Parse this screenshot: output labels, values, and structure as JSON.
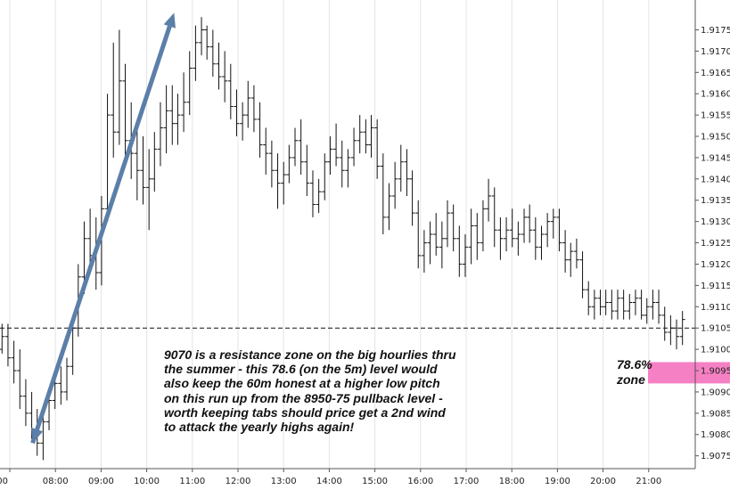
{
  "chart_data": {
    "type": "ohlc",
    "x_axis": {
      "tick_labels": [
        "00",
        "08:00",
        "09:00",
        "10:00",
        "11:00",
        "12:00",
        "13:00",
        "14:00",
        "15:00",
        "16:00",
        "17:00",
        "18:00",
        "19:00",
        "20:00",
        "21:00"
      ]
    },
    "y_axis": {
      "range": [
        1.9072,
        1.9182
      ],
      "position": "right",
      "tick_labels": [
        "1.9075",
        "1.9080",
        "1.9085",
        "1.9090",
        "1.9095",
        "1.9100",
        "1.9105",
        "1.9110",
        "1.9115",
        "1.9120",
        "1.9125",
        "1.9130",
        "1.9135",
        "1.9140",
        "1.9145",
        "1.9150",
        "1.9155",
        "1.9160",
        "1.9165",
        "1.9170",
        "1.9175"
      ]
    },
    "grid": "vertical",
    "x_range": [
      0,
      15.3
    ],
    "tick_positions": [
      0,
      1,
      2,
      3,
      4,
      5,
      6,
      7,
      8,
      9,
      10,
      11,
      12,
      13,
      14
    ],
    "resistance_level": 1.9105,
    "zone": {
      "low": 1.9092,
      "high": 1.9097,
      "label_lines": [
        "78.6%",
        "zone"
      ]
    },
    "arrow": {
      "from": {
        "t": 0.5,
        "p": 1.9078
      },
      "to": {
        "t": 3.6,
        "p": 1.9179
      }
    },
    "bars": [
      [
        -0.95,
        1.909,
        1.9096,
        1.9086,
        1.9088
      ],
      [
        -0.82,
        1.9088,
        1.91,
        1.9087,
        1.9098
      ],
      [
        -0.69,
        1.9098,
        1.9106,
        1.9097,
        1.9104
      ],
      [
        -0.56,
        1.9104,
        1.9106,
        1.9098,
        1.91
      ],
      [
        -0.43,
        1.91,
        1.9103,
        1.9094,
        1.9096
      ],
      [
        -0.3,
        1.9096,
        1.9102,
        1.9092,
        1.91
      ],
      [
        -0.17,
        1.91,
        1.9106,
        1.9099,
        1.9103
      ],
      [
        -0.04,
        1.9103,
        1.9106,
        1.9096,
        1.9098
      ],
      [
        0.09,
        1.9098,
        1.9102,
        1.9092,
        1.9095
      ],
      [
        0.22,
        1.9095,
        1.91,
        1.9086,
        1.9089
      ],
      [
        0.35,
        1.9089,
        1.9093,
        1.9082,
        1.9085
      ],
      [
        0.48,
        1.9085,
        1.909,
        1.9079,
        1.9081
      ],
      [
        0.6,
        1.9081,
        1.9086,
        1.9075,
        1.9078
      ],
      [
        0.73,
        1.9078,
        1.9085,
        1.9074,
        1.9083
      ],
      [
        0.86,
        1.9083,
        1.909,
        1.9081,
        1.9088
      ],
      [
        0.99,
        1.9088,
        1.9094,
        1.9086,
        1.9092
      ],
      [
        1.12,
        1.9092,
        1.9096,
        1.9087,
        1.909
      ],
      [
        1.25,
        1.909,
        1.9098,
        1.9088,
        1.9096
      ],
      [
        1.38,
        1.9096,
        1.9108,
        1.9094,
        1.9105
      ],
      [
        1.5,
        1.9105,
        1.912,
        1.9103,
        1.9117
      ],
      [
        1.63,
        1.9117,
        1.913,
        1.9113,
        1.9126
      ],
      [
        1.76,
        1.9126,
        1.9133,
        1.9118,
        1.9122
      ],
      [
        1.89,
        1.9122,
        1.9131,
        1.9114,
        1.9118
      ],
      [
        2.01,
        1.9118,
        1.9136,
        1.9115,
        1.9133
      ],
      [
        2.14,
        1.9133,
        1.916,
        1.913,
        1.9155
      ],
      [
        2.27,
        1.9155,
        1.9172,
        1.9145,
        1.9151
      ],
      [
        2.4,
        1.9151,
        1.9175,
        1.9148,
        1.9163
      ],
      [
        2.53,
        1.9163,
        1.9167,
        1.9145,
        1.9149
      ],
      [
        2.66,
        1.9149,
        1.9158,
        1.914,
        1.9146
      ],
      [
        2.79,
        1.9146,
        1.9152,
        1.9135,
        1.9142
      ],
      [
        2.92,
        1.9142,
        1.915,
        1.9134,
        1.9138
      ],
      [
        3.05,
        1.9138,
        1.9147,
        1.9128,
        1.914
      ],
      [
        3.17,
        1.914,
        1.9151,
        1.9137,
        1.9147
      ],
      [
        3.3,
        1.9147,
        1.9158,
        1.9143,
        1.9152
      ],
      [
        3.43,
        1.9152,
        1.9162,
        1.9146,
        1.9156
      ],
      [
        3.56,
        1.9156,
        1.9162,
        1.9148,
        1.9153
      ],
      [
        3.68,
        1.9153,
        1.916,
        1.9148,
        1.9155
      ],
      [
        3.81,
        1.9155,
        1.9165,
        1.9151,
        1.9158
      ],
      [
        3.94,
        1.9158,
        1.917,
        1.9155,
        1.9166
      ],
      [
        4.07,
        1.9166,
        1.9176,
        1.9163,
        1.9172
      ],
      [
        4.2,
        1.9172,
        1.9178,
        1.9169,
        1.9175
      ],
      [
        4.32,
        1.9175,
        1.9176,
        1.9168,
        1.9171
      ],
      [
        4.45,
        1.9171,
        1.9175,
        1.9164,
        1.9167
      ],
      [
        4.58,
        1.9167,
        1.9172,
        1.9161,
        1.9164
      ],
      [
        4.71,
        1.9164,
        1.917,
        1.9158,
        1.9163
      ],
      [
        4.84,
        1.9163,
        1.9167,
        1.9154,
        1.9157
      ],
      [
        4.97,
        1.9157,
        1.9161,
        1.915,
        1.9153
      ],
      [
        5.1,
        1.9153,
        1.9158,
        1.9149,
        1.9155
      ],
      [
        5.22,
        1.9155,
        1.9163,
        1.9152,
        1.9159
      ],
      [
        5.35,
        1.9159,
        1.9162,
        1.9151,
        1.9154
      ],
      [
        5.48,
        1.9154,
        1.9158,
        1.9145,
        1.9148
      ],
      [
        5.61,
        1.9148,
        1.9152,
        1.9141,
        1.9146
      ],
      [
        5.74,
        1.9146,
        1.9149,
        1.9138,
        1.9142
      ],
      [
        5.87,
        1.9142,
        1.9146,
        1.9133,
        1.9139
      ],
      [
        6.0,
        1.9139,
        1.9144,
        1.9134,
        1.9141
      ],
      [
        6.12,
        1.9141,
        1.9148,
        1.9139,
        1.9145
      ],
      [
        6.25,
        1.9145,
        1.9152,
        1.9143,
        1.9149
      ],
      [
        6.38,
        1.9149,
        1.9154,
        1.9141,
        1.9144
      ],
      [
        6.51,
        1.9144,
        1.9148,
        1.9136,
        1.9139
      ],
      [
        6.64,
        1.9139,
        1.9142,
        1.9131,
        1.9134
      ],
      [
        6.77,
        1.9134,
        1.914,
        1.9132,
        1.9137
      ],
      [
        6.9,
        1.9137,
        1.9146,
        1.9135,
        1.9144
      ],
      [
        7.02,
        1.9144,
        1.915,
        1.9141,
        1.9147
      ],
      [
        7.15,
        1.9147,
        1.9153,
        1.9143,
        1.9145
      ],
      [
        7.28,
        1.9145,
        1.9149,
        1.9138,
        1.9142
      ],
      [
        7.41,
        1.9142,
        1.9147,
        1.9138,
        1.9145
      ],
      [
        7.54,
        1.9145,
        1.9152,
        1.9143,
        1.9149
      ],
      [
        7.67,
        1.9149,
        1.9155,
        1.9146,
        1.9151
      ],
      [
        7.8,
        1.9151,
        1.9154,
        1.9146,
        1.9148
      ],
      [
        7.92,
        1.9148,
        1.9155,
        1.9145,
        1.9152
      ],
      [
        8.05,
        1.9152,
        1.9154,
        1.914,
        1.9143
      ],
      [
        8.18,
        1.9143,
        1.9146,
        1.9127,
        1.9131
      ],
      [
        8.31,
        1.9131,
        1.9139,
        1.9128,
        1.9136
      ],
      [
        8.44,
        1.9136,
        1.9144,
        1.9133,
        1.914
      ],
      [
        8.57,
        1.914,
        1.9148,
        1.9137,
        1.9144
      ],
      [
        8.7,
        1.9144,
        1.9147,
        1.9136,
        1.914
      ],
      [
        8.82,
        1.914,
        1.9142,
        1.9129,
        1.9132
      ],
      [
        8.95,
        1.9132,
        1.9135,
        1.9119,
        1.9122
      ],
      [
        9.08,
        1.9122,
        1.9128,
        1.9118,
        1.9125
      ],
      [
        9.21,
        1.9125,
        1.913,
        1.912,
        1.9127
      ],
      [
        9.34,
        1.9127,
        1.9132,
        1.9122,
        1.9124
      ],
      [
        9.47,
        1.9124,
        1.913,
        1.9119,
        1.9126
      ],
      [
        9.59,
        1.9126,
        1.9135,
        1.9124,
        1.9132
      ],
      [
        9.72,
        1.9132,
        1.9134,
        1.9123,
        1.9126
      ],
      [
        9.85,
        1.9126,
        1.9129,
        1.9117,
        1.912
      ],
      [
        9.98,
        1.912,
        1.9127,
        1.9117,
        1.9124
      ],
      [
        10.11,
        1.9124,
        1.9133,
        1.912,
        1.9129
      ],
      [
        10.24,
        1.9129,
        1.9132,
        1.9121,
        1.9125
      ],
      [
        10.37,
        1.9125,
        1.9135,
        1.9123,
        1.9133
      ],
      [
        10.49,
        1.9133,
        1.914,
        1.913,
        1.9136
      ],
      [
        10.62,
        1.9136,
        1.9138,
        1.9124,
        1.9128
      ],
      [
        10.75,
        1.9128,
        1.9131,
        1.9121,
        1.9126
      ],
      [
        10.88,
        1.9126,
        1.9131,
        1.9123,
        1.9128
      ],
      [
        11.01,
        1.9128,
        1.9133,
        1.9124,
        1.9126
      ],
      [
        11.14,
        1.9126,
        1.913,
        1.9122,
        1.9127
      ],
      [
        11.27,
        1.9127,
        1.9133,
        1.9125,
        1.9131
      ],
      [
        11.39,
        1.9131,
        1.9134,
        1.9125,
        1.9128
      ],
      [
        11.52,
        1.9128,
        1.9131,
        1.9121,
        1.9124
      ],
      [
        11.65,
        1.9124,
        1.9129,
        1.9121,
        1.9127
      ],
      [
        11.78,
        1.9127,
        1.9132,
        1.9124,
        1.913
      ],
      [
        11.91,
        1.913,
        1.9133,
        1.9126,
        1.9131
      ],
      [
        12.04,
        1.9131,
        1.9133,
        1.9123,
        1.9125
      ],
      [
        12.17,
        1.9125,
        1.9128,
        1.9118,
        1.9121
      ],
      [
        12.29,
        1.9121,
        1.9125,
        1.9117,
        1.9123
      ],
      [
        12.42,
        1.9123,
        1.9126,
        1.9119,
        1.9121
      ],
      [
        12.55,
        1.9121,
        1.9123,
        1.9112,
        1.9114
      ],
      [
        12.68,
        1.9114,
        1.9116,
        1.9108,
        1.911
      ],
      [
        12.81,
        1.911,
        1.9114,
        1.9107,
        1.9112
      ],
      [
        12.94,
        1.9112,
        1.9114,
        1.9108,
        1.911
      ],
      [
        13.06,
        1.911,
        1.9114,
        1.9108,
        1.9111
      ],
      [
        13.19,
        1.9111,
        1.9114,
        1.9107,
        1.9109
      ],
      [
        13.32,
        1.9109,
        1.9114,
        1.9107,
        1.9112
      ],
      [
        13.45,
        1.9112,
        1.9114,
        1.9107,
        1.9109
      ],
      [
        13.58,
        1.9109,
        1.9113,
        1.9107,
        1.9111
      ],
      [
        13.71,
        1.9111,
        1.9114,
        1.9108,
        1.9112
      ],
      [
        13.84,
        1.9112,
        1.9114,
        1.9107,
        1.9108
      ],
      [
        13.96,
        1.9108,
        1.9112,
        1.9106,
        1.911
      ],
      [
        14.09,
        1.911,
        1.9114,
        1.9107,
        1.9111
      ],
      [
        14.22,
        1.9111,
        1.9114,
        1.9106,
        1.9108
      ],
      [
        14.35,
        1.9108,
        1.911,
        1.9102,
        1.9104
      ],
      [
        14.48,
        1.9104,
        1.9108,
        1.9101,
        1.9105
      ],
      [
        14.61,
        1.9105,
        1.9107,
        1.91,
        1.9103
      ],
      [
        14.74,
        1.9103,
        1.9109,
        1.9101,
        1.9107
      ]
    ]
  },
  "annotations": {
    "commentary_lines": [
      "9070 is a resistance zone on the big hourlies thru",
      "the summer - this 78.6 (on the 5m) level would",
      "also keep the 60m honest at a higher low pitch",
      "on this run up from the 8950-75 pullback level -",
      "worth keeping tabs should price get a 2nd wind",
      "to attack the yearly highs again!"
    ]
  },
  "colors": {
    "zone": "#f580c4",
    "arrow": "#5b7fa8",
    "bars": "#111111",
    "grid": "#e4e4e4",
    "axis": "#555555"
  }
}
